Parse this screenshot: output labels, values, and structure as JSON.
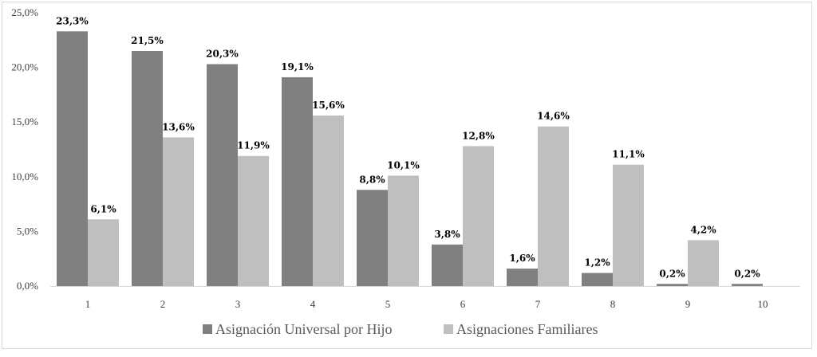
{
  "chart_data": {
    "type": "bar",
    "categories": [
      "1",
      "2",
      "3",
      "4",
      "5",
      "6",
      "7",
      "8",
      "9",
      "10"
    ],
    "series": [
      {
        "name": "Asignación Universal por Hijo",
        "color": "#808080",
        "values": [
          23.3,
          21.5,
          20.3,
          19.1,
          8.8,
          3.8,
          1.6,
          1.2,
          0.2,
          0.2
        ],
        "labels": [
          "23,3%",
          "21,5%",
          "20,3%",
          "19,1%",
          "8,8%",
          "3,8%",
          "1,6%",
          "1,2%",
          "0,2%",
          "0,2%"
        ]
      },
      {
        "name": "Asignaciones Familiares",
        "color": "#bfbfbf",
        "values": [
          6.1,
          13.6,
          11.9,
          15.6,
          10.1,
          12.8,
          14.6,
          11.1,
          4.2,
          null
        ],
        "labels": [
          "6,1%",
          "13,6%",
          "11,9%",
          "15,6%",
          "10,1%",
          "12,8%",
          "14,6%",
          "11,1%",
          "4,2%",
          null
        ]
      }
    ],
    "ylim": [
      0,
      25
    ],
    "yticks": [
      0,
      5,
      10,
      15,
      20,
      25
    ],
    "ytick_labels": [
      "0,0%",
      "5,0%",
      "10,0%",
      "15,0%",
      "20,0%",
      "25,0%"
    ],
    "grid": false,
    "legend_position": "bottom"
  }
}
